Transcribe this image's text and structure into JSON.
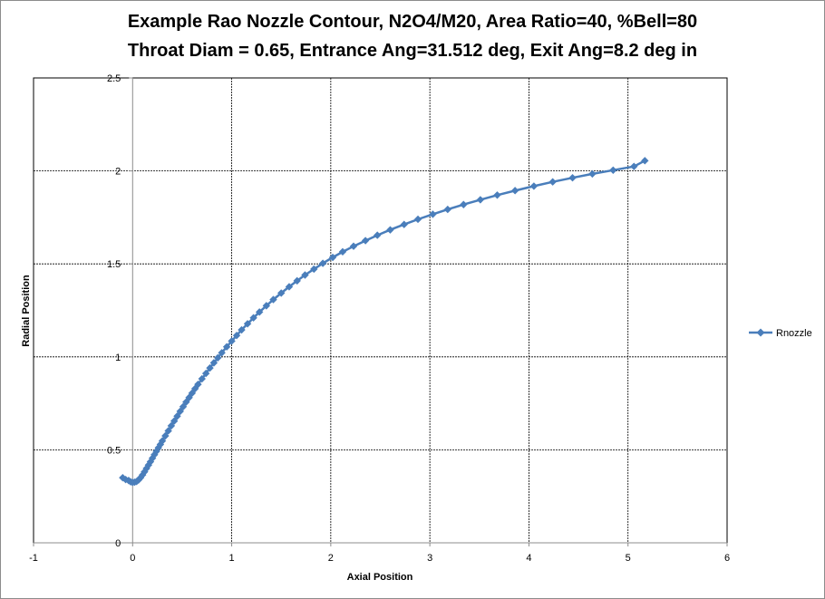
{
  "chart_data": {
    "type": "scatter",
    "title": "Example Rao Nozzle Contour, N2O4/M20,  Area Ratio=40, %Bell=80",
    "subtitle": "Throat Diam = 0.65,  Entrance Ang=31.512 deg,  Exit Ang=8.2 deg in",
    "xlabel": "Axial Position",
    "ylabel": "Radial Position",
    "xlim": [
      -1,
      6
    ],
    "ylim": [
      0,
      2.5
    ],
    "xticks": [
      "-1",
      "0",
      "1",
      "2",
      "3",
      "4",
      "5",
      "6"
    ],
    "yticks": [
      "0",
      "0.5",
      "1",
      "1.5",
      "2",
      "2.5"
    ],
    "grid": true,
    "legend_position": "right",
    "series": [
      {
        "name": "Rnozzle",
        "color": "#4a7ebb",
        "marker": "diamond",
        "line": true,
        "points": [
          [
            -0.1,
            0.35
          ],
          [
            -0.07,
            0.34
          ],
          [
            -0.04,
            0.335
          ],
          [
            -0.02,
            0.328
          ],
          [
            0.0,
            0.325
          ],
          [
            0.02,
            0.326
          ],
          [
            0.04,
            0.33
          ],
          [
            0.06,
            0.338
          ],
          [
            0.08,
            0.35
          ],
          [
            0.1,
            0.365
          ],
          [
            0.12,
            0.382
          ],
          [
            0.14,
            0.4
          ],
          [
            0.16,
            0.418
          ],
          [
            0.18,
            0.436
          ],
          [
            0.2,
            0.455
          ],
          [
            0.22,
            0.474
          ],
          [
            0.24,
            0.492
          ],
          [
            0.26,
            0.511
          ],
          [
            0.28,
            0.529
          ],
          [
            0.3,
            0.548
          ],
          [
            0.33,
            0.575
          ],
          [
            0.36,
            0.602
          ],
          [
            0.39,
            0.629
          ],
          [
            0.42,
            0.655
          ],
          [
            0.45,
            0.681
          ],
          [
            0.48,
            0.707
          ],
          [
            0.51,
            0.732
          ],
          [
            0.54,
            0.757
          ],
          [
            0.57,
            0.781
          ],
          [
            0.6,
            0.805
          ],
          [
            0.63,
            0.829
          ],
          [
            0.66,
            0.852
          ],
          [
            0.7,
            0.882
          ],
          [
            0.74,
            0.911
          ],
          [
            0.78,
            0.94
          ],
          [
            0.82,
            0.968
          ],
          [
            0.86,
            0.995
          ],
          [
            0.9,
            1.022
          ],
          [
            0.95,
            1.054
          ],
          [
            1.0,
            1.085
          ],
          [
            1.05,
            1.115
          ],
          [
            1.1,
            1.145
          ],
          [
            1.16,
            1.178
          ],
          [
            1.22,
            1.21
          ],
          [
            1.28,
            1.241
          ],
          [
            1.35,
            1.275
          ],
          [
            1.42,
            1.308
          ],
          [
            1.5,
            1.343
          ],
          [
            1.58,
            1.377
          ],
          [
            1.66,
            1.409
          ],
          [
            1.74,
            1.44
          ],
          [
            1.83,
            1.472
          ],
          [
            1.92,
            1.503
          ],
          [
            2.02,
            1.535
          ],
          [
            2.12,
            1.565
          ],
          [
            2.23,
            1.595
          ],
          [
            2.35,
            1.625
          ],
          [
            2.47,
            1.654
          ],
          [
            2.6,
            1.683
          ],
          [
            2.74,
            1.712
          ],
          [
            2.88,
            1.74
          ],
          [
            3.03,
            1.767
          ],
          [
            3.18,
            1.793
          ],
          [
            3.34,
            1.819
          ],
          [
            3.51,
            1.845
          ],
          [
            3.68,
            1.87
          ],
          [
            3.86,
            1.894
          ],
          [
            4.05,
            1.918
          ],
          [
            4.24,
            1.941
          ],
          [
            4.44,
            1.963
          ],
          [
            4.64,
            1.984
          ],
          [
            4.85,
            2.004
          ],
          [
            5.06,
            2.024
          ],
          [
            5.17,
            2.055
          ]
        ]
      }
    ]
  }
}
